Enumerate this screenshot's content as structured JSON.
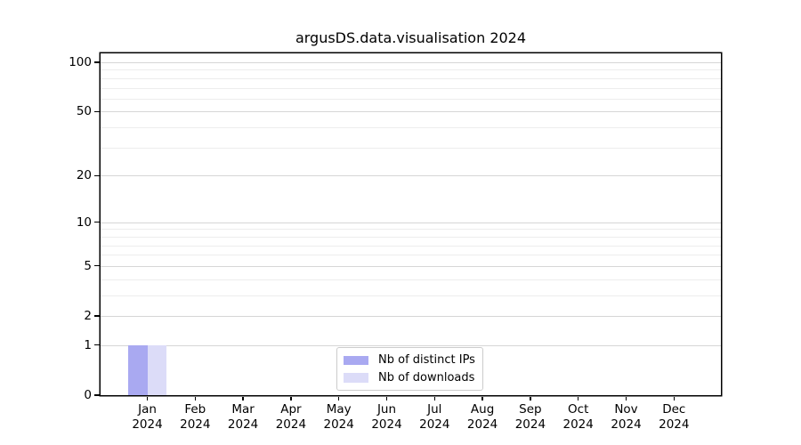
{
  "figure": {
    "title": "argusDS.data.visualisation 2024"
  },
  "chart_data": {
    "type": "bar",
    "title": "argusDS.data.visualisation 2024",
    "x_tick_labels": [
      {
        "month": "Jan",
        "year": "2024"
      },
      {
        "month": "Feb",
        "year": "2024"
      },
      {
        "month": "Mar",
        "year": "2024"
      },
      {
        "month": "Apr",
        "year": "2024"
      },
      {
        "month": "May",
        "year": "2024"
      },
      {
        "month": "Jun",
        "year": "2024"
      },
      {
        "month": "Jul",
        "year": "2024"
      },
      {
        "month": "Aug",
        "year": "2024"
      },
      {
        "month": "Sep",
        "year": "2024"
      },
      {
        "month": "Oct",
        "year": "2024"
      },
      {
        "month": "Nov",
        "year": "2024"
      },
      {
        "month": "Dec",
        "year": "2024"
      }
    ],
    "series": [
      {
        "name": "Nb of distinct IPs",
        "color": "#a9a9f1",
        "values": [
          1,
          0,
          0,
          0,
          0,
          0,
          0,
          0,
          0,
          0,
          0,
          0
        ]
      },
      {
        "name": "Nb of downloads",
        "color": "#dcdcf8",
        "values": [
          1,
          0,
          0,
          0,
          0,
          0,
          0,
          0,
          0,
          0,
          0,
          0
        ]
      }
    ],
    "y_axis": {
      "scale": "log1p",
      "major_ticks": [
        0,
        1,
        2,
        5,
        10,
        20,
        50,
        100
      ],
      "major_tick_labels": [
        "0",
        "1",
        "2",
        "5",
        "10",
        "20",
        "50",
        "100"
      ],
      "minor_ticks": [
        3,
        4,
        6,
        7,
        8,
        9,
        30,
        40,
        60,
        70,
        80,
        90
      ],
      "ylim": [
        0,
        113
      ]
    },
    "grid": true,
    "legend_position": "lower center",
    "colors": {
      "major_grid": "#d6d6d6",
      "minor_grid": "#ededed",
      "axis": "#000000",
      "legend_border": "#cccccc",
      "background": "#ffffff"
    }
  }
}
